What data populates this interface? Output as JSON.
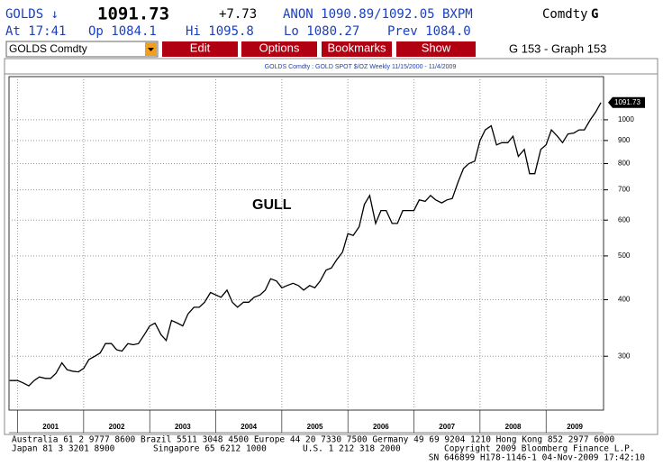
{
  "header": {
    "ticker": "GOLDS ↓",
    "price": "1091.73",
    "change": "+7.73",
    "quote": "ANON 1090.89/1092.05 BXPM",
    "asset": "Comdty",
    "asset_key": "G",
    "time": "At 17:41",
    "open": "Op 1084.1",
    "high": "Hi 1095.8",
    "low": "Lo 1080.27",
    "prev": "Prev 1084.0"
  },
  "toolbar": {
    "security": "GOLDS Comdty",
    "buttons": [
      "Edit",
      "Options",
      "Bookmarks",
      "Show"
    ],
    "page": "G 153 - Graph 153"
  },
  "chart_data": {
    "type": "line",
    "subtitle": "GOLDS Comdty : GOLD SPOT $/OZ   Weekly 11/15/2000 - 11/4/2009",
    "annotation": "GULL",
    "log_scale": true,
    "grid": true,
    "xlim": [
      2000.87,
      2009.87
    ],
    "xticks": [
      2001,
      2002,
      2003,
      2004,
      2005,
      2006,
      2007,
      2008,
      2009
    ],
    "ylim": [
      228,
      1246
    ],
    "yticks": [
      300,
      400,
      500,
      600,
      700,
      800,
      900,
      1000
    ],
    "x": [
      2000.88,
      2001.0,
      2001.08,
      2001.17,
      2001.25,
      2001.33,
      2001.42,
      2001.5,
      2001.58,
      2001.67,
      2001.75,
      2001.83,
      2001.92,
      2002.0,
      2002.08,
      2002.17,
      2002.25,
      2002.33,
      2002.42,
      2002.5,
      2002.58,
      2002.67,
      2002.75,
      2002.83,
      2002.92,
      2003.0,
      2003.08,
      2003.17,
      2003.25,
      2003.33,
      2003.42,
      2003.5,
      2003.58,
      2003.67,
      2003.75,
      2003.83,
      2003.92,
      2004.0,
      2004.08,
      2004.17,
      2004.25,
      2004.33,
      2004.42,
      2004.5,
      2004.58,
      2004.67,
      2004.75,
      2004.83,
      2004.92,
      2005.0,
      2005.08,
      2005.17,
      2005.25,
      2005.33,
      2005.42,
      2005.5,
      2005.58,
      2005.67,
      2005.75,
      2005.83,
      2005.92,
      2006.0,
      2006.08,
      2006.17,
      2006.25,
      2006.33,
      2006.42,
      2006.5,
      2006.58,
      2006.67,
      2006.75,
      2006.83,
      2006.92,
      2007.0,
      2007.08,
      2007.17,
      2007.25,
      2007.33,
      2007.42,
      2007.5,
      2007.58,
      2007.67,
      2007.75,
      2007.83,
      2007.92,
      2008.0,
      2008.08,
      2008.17,
      2008.25,
      2008.33,
      2008.42,
      2008.5,
      2008.58,
      2008.67,
      2008.75,
      2008.83,
      2008.92,
      2009.0,
      2009.08,
      2009.17,
      2009.25,
      2009.33,
      2009.42,
      2009.5,
      2009.58,
      2009.67,
      2009.75,
      2009.83
    ],
    "series": [
      {
        "name": "GOLDS Comdty",
        "color": "#000000",
        "values": [
          265,
          265,
          262,
          258,
          265,
          270,
          268,
          268,
          275,
          290,
          280,
          278,
          277,
          282,
          295,
          300,
          305,
          320,
          320,
          310,
          308,
          320,
          318,
          320,
          335,
          350,
          355,
          335,
          325,
          360,
          355,
          350,
          372,
          385,
          385,
          395,
          415,
          410,
          405,
          420,
          395,
          385,
          395,
          395,
          405,
          410,
          420,
          445,
          440,
          425,
          430,
          435,
          430,
          420,
          430,
          425,
          440,
          465,
          470,
          490,
          510,
          560,
          555,
          580,
          650,
          680,
          590,
          630,
          630,
          590,
          590,
          630,
          630,
          630,
          665,
          660,
          680,
          665,
          655,
          665,
          670,
          730,
          780,
          800,
          810,
          900,
          950,
          970,
          880,
          890,
          890,
          920,
          830,
          860,
          760,
          760,
          860,
          880,
          950,
          920,
          890,
          930,
          935,
          950,
          950,
          1000,
          1040,
          1091.73
        ]
      }
    ]
  },
  "footer": {
    "line1": "Australia 61 2 9777 8600 Brazil 5511 3048 4500 Europe 44 20 7330 7500 Germany 49 69 9204 1210 Hong Kong 852 2977 6000",
    "japan": "Japan 81 3 3201 8900",
    "singapore": "Singapore 65 6212 1000",
    "us": "U.S. 1 212 318 2000",
    "copyright": "Copyright 2009 Bloomberg Finance L.P.",
    "sn": "SN 646899 H178-1146-1 04-Nov-2009 17:42:10"
  }
}
